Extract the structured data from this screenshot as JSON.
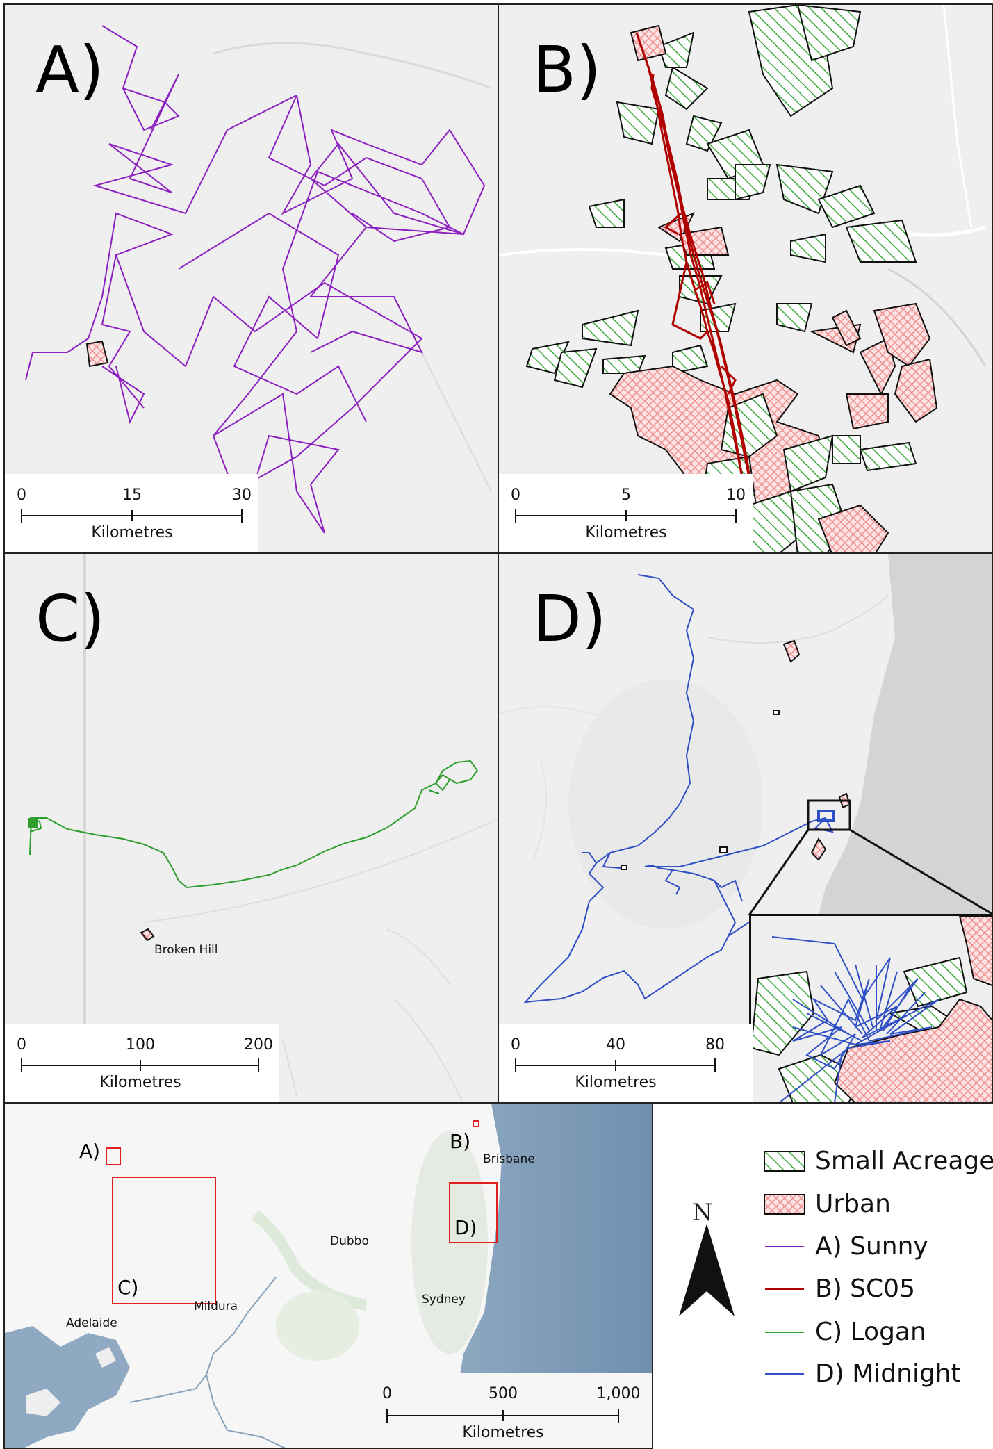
{
  "panels": {
    "a": {
      "label": "A)",
      "track_color": "#8b1fbf",
      "scale": {
        "ticks": [
          "0",
          "15",
          "30"
        ],
        "unit": "Kilometres"
      }
    },
    "b": {
      "label": "B)",
      "track_color": "#b00000",
      "scale": {
        "ticks": [
          "0",
          "5",
          "10"
        ],
        "unit": "Kilometres"
      }
    },
    "c": {
      "label": "C)",
      "track_color": "#2e9e2e",
      "place": "Broken Hill",
      "scale": {
        "ticks": [
          "0",
          "100",
          "200"
        ],
        "unit": "Kilometres"
      }
    },
    "d": {
      "label": "D)",
      "track_color": "#2f4fc4",
      "scale": {
        "ticks": [
          "0",
          "40",
          "80"
        ],
        "unit": "Kilometres"
      }
    }
  },
  "overview": {
    "places": [
      "Brisbane",
      "Dubbo",
      "Sydney",
      "Mildura",
      "Adelaide"
    ],
    "box_labels": [
      "A)",
      "B)",
      "C)",
      "D)"
    ],
    "scale": {
      "ticks": [
        "0",
        "500",
        "1,000"
      ],
      "unit": "Kilometres"
    }
  },
  "legend": {
    "items": [
      {
        "label": "Small Acreage",
        "kind": "hatch-green",
        "color": "#3aa83a"
      },
      {
        "label": "Urban",
        "kind": "cross-red",
        "color": "#f08080"
      },
      {
        "label": "A) Sunny",
        "kind": "line",
        "color": "#8b1fbf"
      },
      {
        "label": "B) SC05",
        "kind": "line",
        "color": "#b00000"
      },
      {
        "label": "C) Logan",
        "kind": "line",
        "color": "#2e9e2e"
      },
      {
        "label": "D) Midnight",
        "kind": "line",
        "color": "#2f4fc4"
      }
    ],
    "north": "N"
  }
}
